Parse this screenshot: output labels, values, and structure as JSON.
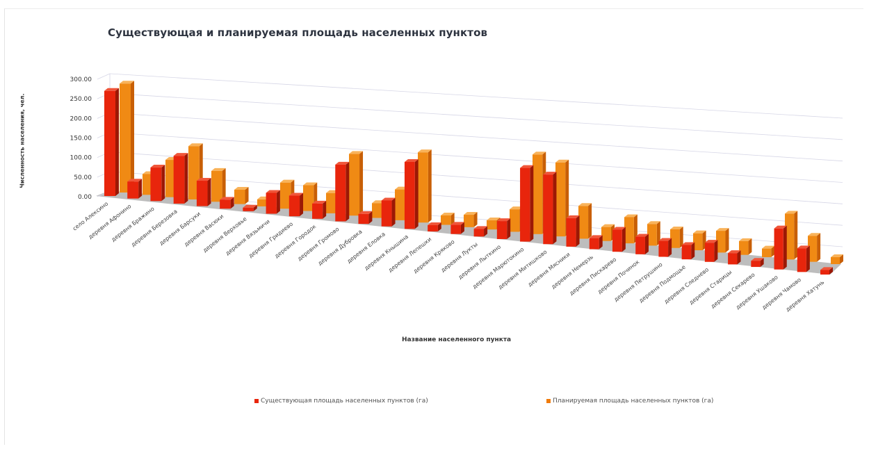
{
  "chart_data": {
    "type": "bar",
    "title": "Существующая и планируемая площадь населенных пунктов",
    "xlabel": "Название населенного пункта",
    "ylabel": "Численность населения, чел.",
    "ylim": [
      0,
      300
    ],
    "yticks": [
      "0.00",
      "50.00",
      "100.00",
      "150.00",
      "200.00",
      "250.00",
      "300.00"
    ],
    "legend_position": "bottom",
    "categories": [
      "село Алексино",
      "деревня Афонино",
      "деревня Бражино",
      "деревня Березовка",
      "деревня Барсуки",
      "деревня Васюки",
      "деревня Верховье",
      "деревня Вязьмичи",
      "деревня Гридиево",
      "деревня Городок",
      "деревня Громово",
      "деревня Дубровка",
      "деревня Еловка",
      "деревня Кнышина",
      "деревня Лепешки",
      "деревня Кряково",
      "деревня Лукты",
      "деревня Лыткино",
      "деревня Марютокино",
      "деревня Митишково",
      "деревня Мясники",
      "деревня Немерзь",
      "деревня Пискарево",
      "деревня Починок",
      "деревня Петрушино",
      "деревня Подмощье",
      "деревня Следнево",
      "деревня Старицы",
      "деревня Секарево",
      "деревня Ушаково",
      "деревня Чамово",
      "деревня Хатунь"
    ],
    "series": [
      {
        "name": "Существующая площадь населенных пунктов (га)",
        "color": "#e8250c",
        "values": [
          275,
          45,
          90,
          130,
          70,
          25,
          10,
          60,
          60,
          45,
          170,
          30,
          80,
          210,
          20,
          30,
          25,
          60,
          250,
          240,
          100,
          40,
          80,
          65,
          60,
          55,
          75,
          45,
          25,
          170,
          100,
          20
        ]
      },
      {
        "name": "Планируемая площадь населенных пунктов (га)",
        "color": "#f07b0c",
        "values": [
          285,
          55,
          100,
          145,
          85,
          40,
          20,
          75,
          75,
          60,
          185,
          45,
          95,
          220,
          30,
          40,
          30,
          75,
          270,
          255,
          115,
          50,
          95,
          80,
          70,
          65,
          85,
          55,
          35,
          190,
          110,
          30
        ]
      }
    ]
  },
  "legend": {
    "item1": "Существующая площадь населенных пунктов (га)",
    "item2": "Планируемая площадь населенных пунктов (га)"
  }
}
